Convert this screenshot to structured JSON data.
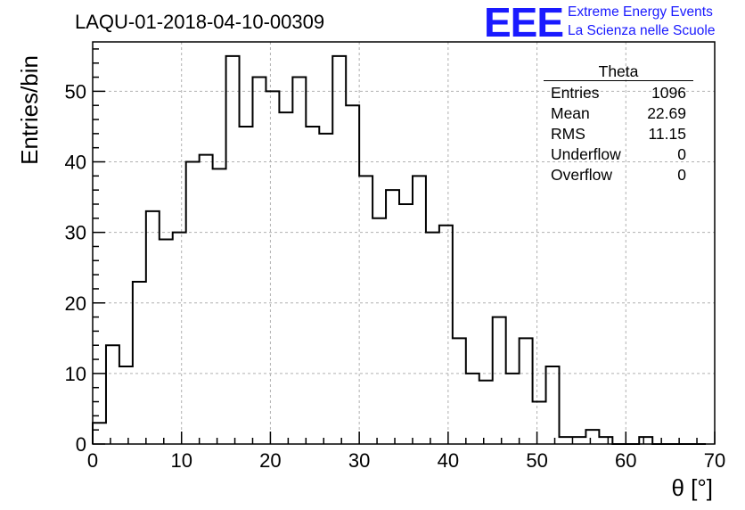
{
  "header": {
    "run_title": "LAQU-01-2018-04-10-00309"
  },
  "logo": {
    "mark": "EEE",
    "line1": "Extreme Energy Events",
    "line2": "La Scienza nelle Scuole",
    "color": "#1a1aff"
  },
  "stats_box": {
    "title": "Theta",
    "rows": [
      {
        "label": "Entries",
        "value": "1096"
      },
      {
        "label": "Mean",
        "value": "22.69"
      },
      {
        "label": "RMS",
        "value": "11.15"
      },
      {
        "label": "Underflow",
        "value": "0"
      },
      {
        "label": "Overflow",
        "value": "0"
      }
    ]
  },
  "chart_data": {
    "type": "bar",
    "histogram": "step",
    "title": "LAQU-01-2018-04-10-00309",
    "xlabel": "θ [°]",
    "ylabel": "Entries/bin",
    "xlim": [
      0,
      70
    ],
    "ylim": [
      0,
      57
    ],
    "bin_width": 1.5,
    "x_ticks": [
      0,
      10,
      20,
      30,
      40,
      50,
      60,
      70
    ],
    "y_ticks": [
      0,
      10,
      20,
      30,
      40,
      50
    ],
    "grid": true,
    "bin_edges_start": 0,
    "values": [
      3,
      14,
      11,
      23,
      33,
      29,
      30,
      40,
      41,
      39,
      55,
      45,
      52,
      50,
      47,
      52,
      45,
      44,
      55,
      48,
      38,
      32,
      36,
      34,
      38,
      30,
      31,
      15,
      10,
      9,
      18,
      10,
      15,
      6,
      11,
      1,
      1,
      2,
      1,
      0,
      0,
      1,
      0,
      0,
      0,
      0,
      0
    ]
  }
}
